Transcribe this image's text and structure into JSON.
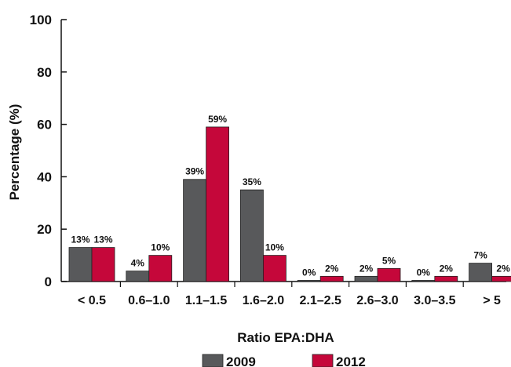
{
  "chart_data": {
    "type": "bar",
    "title": "",
    "xlabel": "Ratio EPA:DHA",
    "ylabel": "Percentage (%)",
    "ylim": [
      0,
      100
    ],
    "yticks": [
      "0",
      "20",
      "40",
      "60",
      "80",
      "100"
    ],
    "categories": [
      "< 0.5",
      "0.6–1.0",
      "1.1–1.5",
      "1.6–2.0",
      "2.1–2.5",
      "2.6–3.0",
      "3.0–3.5",
      "> 5"
    ],
    "legend_position": "bottom",
    "grid": false,
    "series": [
      {
        "name": "2009",
        "color": "#58595b",
        "values": [
          13,
          4,
          39,
          35,
          0,
          2,
          0,
          7
        ],
        "labels": [
          "13%",
          "4%",
          "39%",
          "35%",
          "0%",
          "2%",
          "0%",
          "7%"
        ]
      },
      {
        "name": "2012",
        "color": "#c5073a",
        "values": [
          13,
          10,
          59,
          10,
          2,
          5,
          2,
          2
        ],
        "labels": [
          "13%",
          "10%",
          "59%",
          "10%",
          "2%",
          "5%",
          "2%",
          "2%"
        ]
      }
    ]
  }
}
